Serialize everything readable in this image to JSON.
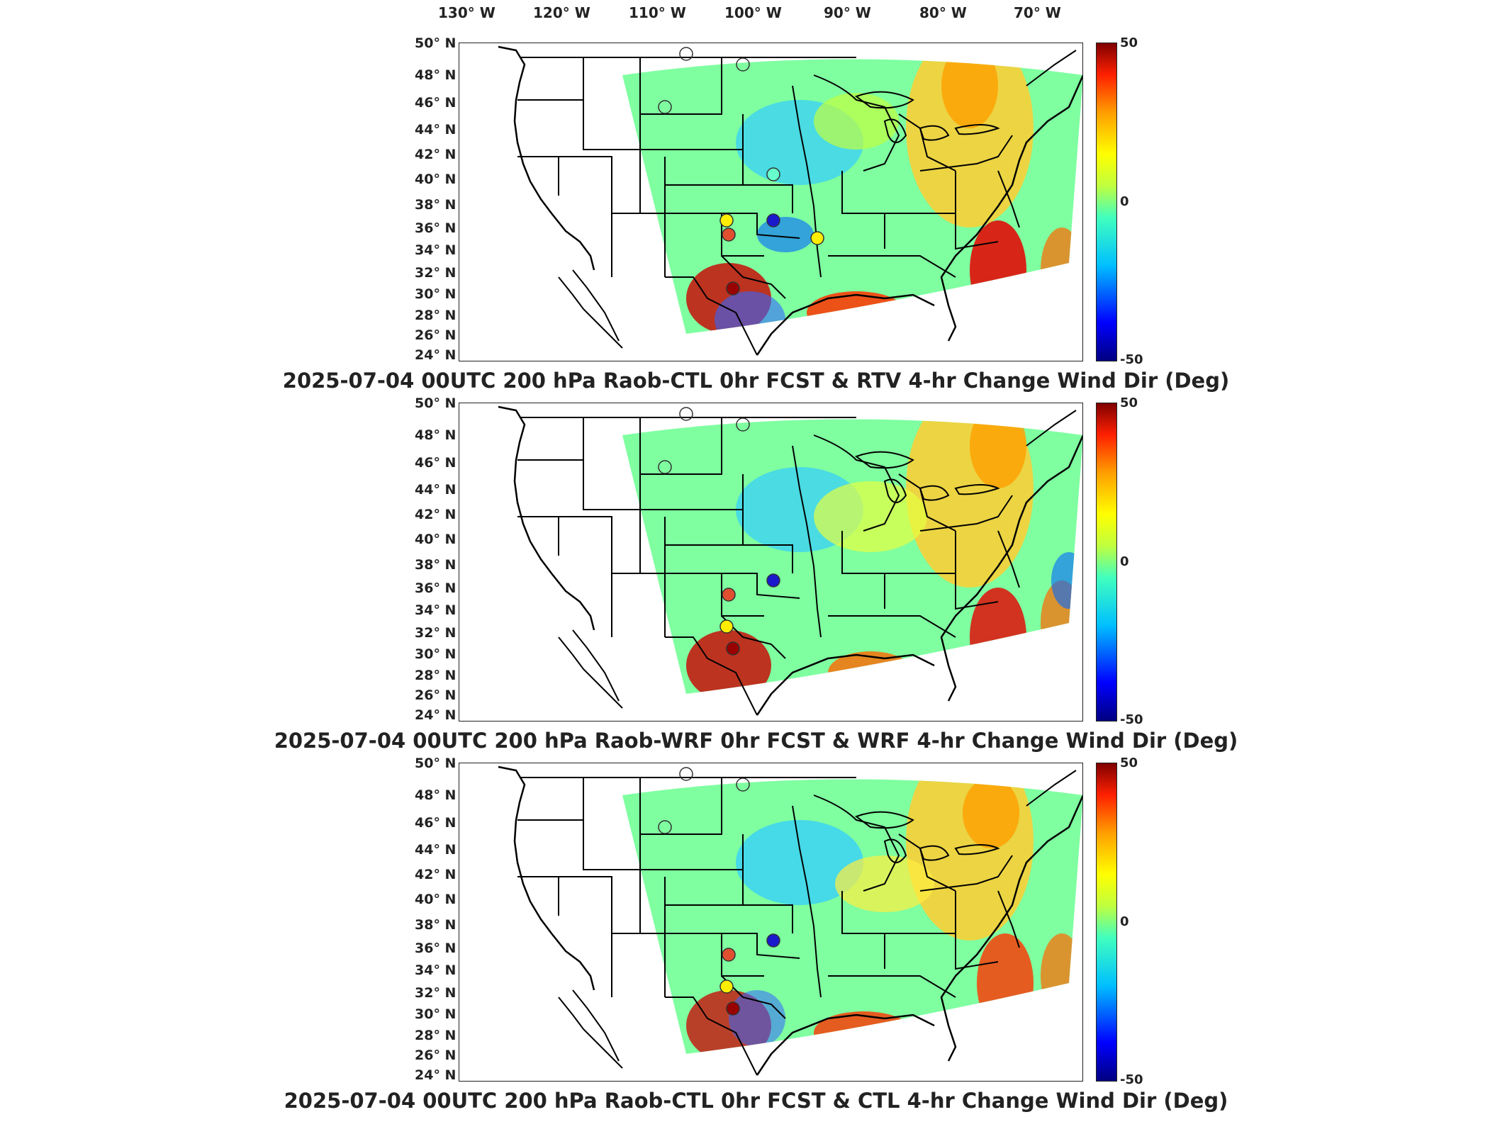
{
  "lon_ticks": [
    "130° W",
    "120° W",
    "110° W",
    "100° W",
    "90° W",
    "80° W",
    "70° W"
  ],
  "lat_ticks": [
    "50° N",
    "48° N",
    "46° N",
    "44° N",
    "42° N",
    "40° N",
    "38° N",
    "36° N",
    "34° N",
    "32° N",
    "30° N",
    "28° N",
    "26° N",
    "24° N"
  ],
  "colorbar": {
    "max": "50",
    "mid": "0",
    "min": "-50",
    "colors": [
      "#00007f",
      "#0000ff",
      "#00bfff",
      "#40ffbf",
      "#bfff40",
      "#ffff00",
      "#ff9f00",
      "#ff2000",
      "#7f0000"
    ]
  },
  "panels": [
    {
      "title": "2025-07-04 00UTC 200 hPa Raob-CTL 0hr FCST & RTV 4-hr Change Wind Dir (Deg)"
    },
    {
      "title": "2025-07-04 00UTC 200 hPa Raob-WRF 0hr FCST & WRF 4-hr Change Wind Dir (Deg)"
    },
    {
      "title": "2025-07-04 00UTC 200 hPa Raob-CTL 0hr FCST & CTL 4-hr Change Wind Dir (Deg)"
    }
  ]
}
